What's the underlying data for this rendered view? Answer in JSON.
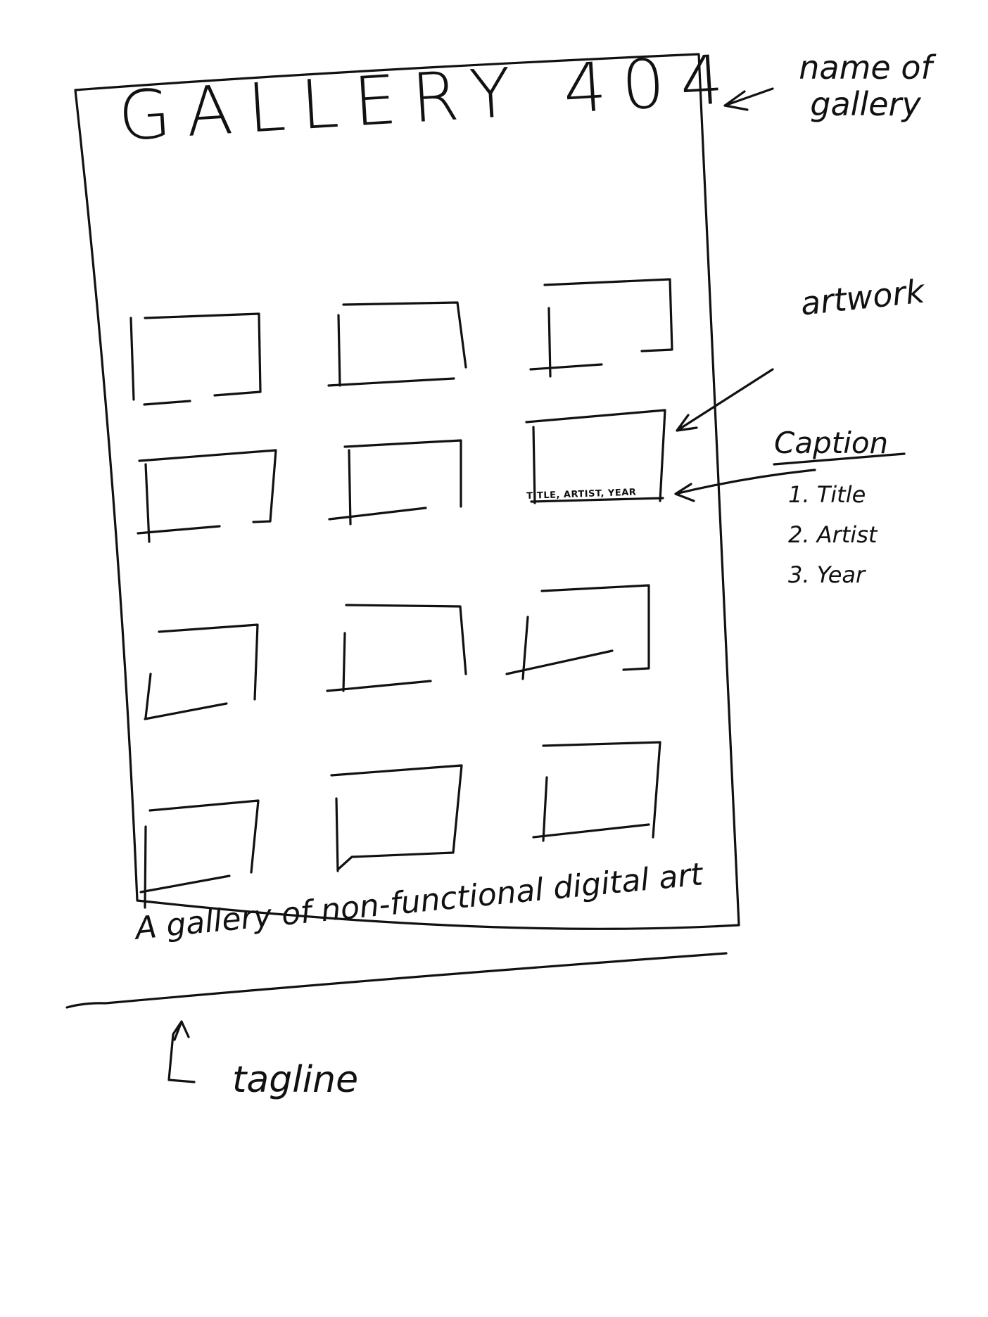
{
  "gallery": {
    "title": "GALLERY 404",
    "tagline": "A gallery of non-functional digital art",
    "artwork_caption": "TITLE, ARTIST, YEAR",
    "artwork_count": 12
  },
  "annotations": {
    "gallery_name": "name of gallery",
    "artwork": "artwork",
    "caption_heading": "Caption",
    "caption_items": [
      "1. Title",
      "2. Artist",
      "3. Year"
    ],
    "tagline": "tagline"
  }
}
